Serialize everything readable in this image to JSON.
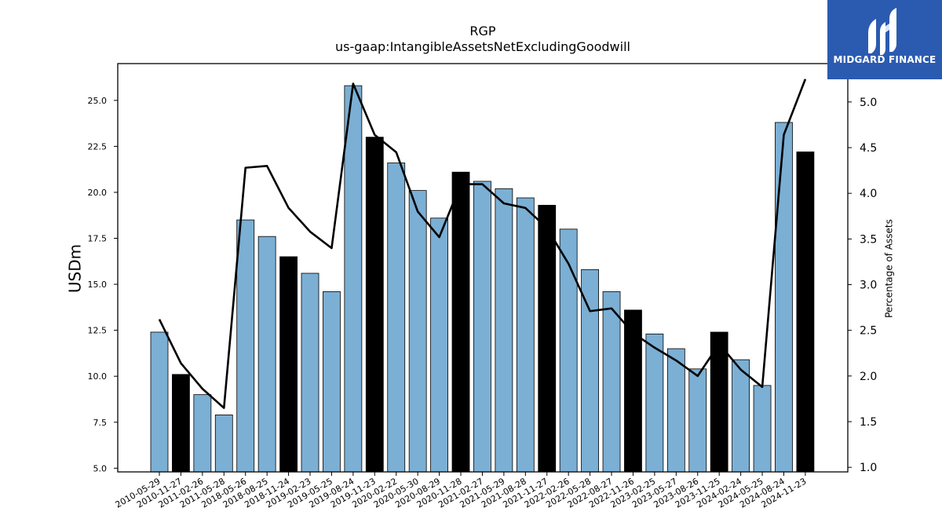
{
  "chart_data": {
    "type": "bar",
    "title": "RGP",
    "subtitle": "us-gaap:IntangibleAssetsNetExcludingGoodwill",
    "ylabel": "USDm",
    "y2label": "Percentage of Assets",
    "ylim": [
      4.8,
      27.0
    ],
    "y2lim": [
      0.95,
      5.42
    ],
    "yticks": [
      "5.0",
      "7.5",
      "10.0",
      "12.5",
      "15.0",
      "17.5",
      "20.0",
      "22.5",
      "25.0"
    ],
    "y2ticks": [
      "1.0",
      "1.5",
      "2.0",
      "2.5",
      "3.0",
      "3.5",
      "4.0",
      "4.5",
      "5.0"
    ],
    "categories": [
      "2010-05-29",
      "2010-11-27",
      "2011-02-26",
      "2011-05-28",
      "2018-05-26",
      "2018-08-25",
      "2018-11-24",
      "2019-02-23",
      "2019-05-25",
      "2019-08-24",
      "2019-11-23",
      "2020-02-22",
      "2020-05-30",
      "2020-08-29",
      "2020-11-28",
      "2021-02-27",
      "2021-05-29",
      "2021-08-28",
      "2021-11-27",
      "2022-02-26",
      "2022-05-28",
      "2022-08-27",
      "2022-11-26",
      "2023-02-25",
      "2023-05-27",
      "2023-08-26",
      "2023-11-25",
      "2024-02-24",
      "2024-05-25",
      "2024-08-24",
      "2024-11-23"
    ],
    "values": [
      12.4,
      10.1,
      9.0,
      7.9,
      18.5,
      17.6,
      16.5,
      15.6,
      14.6,
      25.8,
      23.0,
      21.6,
      20.1,
      18.6,
      21.1,
      20.6,
      20.2,
      19.7,
      19.3,
      18.0,
      15.8,
      14.6,
      13.6,
      12.3,
      11.5,
      10.4,
      12.4,
      10.9,
      9.5,
      23.8,
      22.2
    ],
    "highlight": [
      false,
      true,
      false,
      false,
      false,
      false,
      true,
      false,
      false,
      false,
      true,
      false,
      false,
      false,
      true,
      false,
      false,
      false,
      true,
      false,
      false,
      false,
      true,
      false,
      false,
      false,
      true,
      false,
      false,
      false,
      true
    ],
    "line_values": [
      2.62,
      2.14,
      1.86,
      1.65,
      4.28,
      4.3,
      3.84,
      3.58,
      3.4,
      5.2,
      4.64,
      4.45,
      3.8,
      3.52,
      4.1,
      4.1,
      3.89,
      3.84,
      3.62,
      3.23,
      2.71,
      2.74,
      2.47,
      2.31,
      2.17,
      2.0,
      2.35,
      2.07,
      1.88,
      4.64,
      5.25
    ],
    "bar_color": "#7bafd4",
    "highlight_color": "#000000",
    "line_color": "#000000",
    "grid": false
  },
  "logo": {
    "text": "MIDGARD FINANCE",
    "background": "#2b5bb0"
  }
}
